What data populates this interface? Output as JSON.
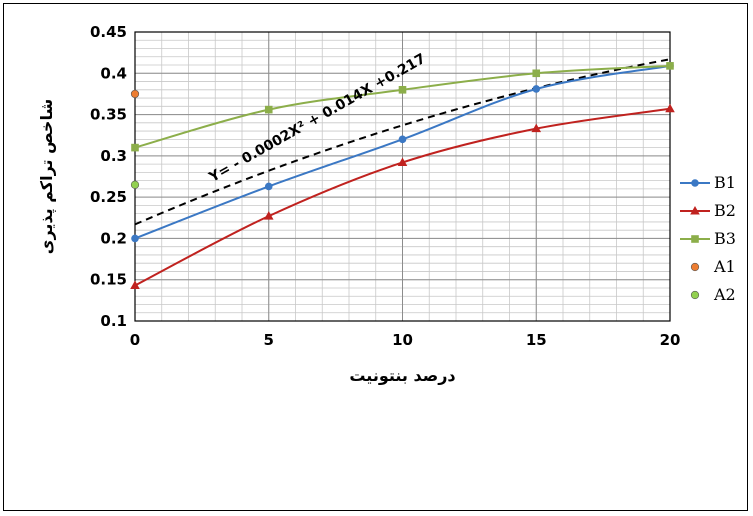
{
  "chart_data": {
    "type": "line",
    "title": "",
    "xlabel": "درصد بنتونیت",
    "ylabel": "شاخص تراکم پذیری",
    "xlim": [
      0,
      20
    ],
    "ylim": [
      0.1,
      0.45
    ],
    "x_ticks": [
      "0",
      "5",
      "10",
      "15",
      "20"
    ],
    "y_ticks": [
      "0.1",
      "0.15",
      "0.2",
      "0.25",
      "0.3",
      "0.35",
      "0.4",
      "0.45"
    ],
    "x_minor_step": 1,
    "y_minor_step": 0.01,
    "grid": true,
    "legend_position": "right",
    "series": [
      {
        "name": "B1",
        "color": "#3b78c4",
        "marker": "circle",
        "x": [
          0,
          5,
          10,
          15,
          20
        ],
        "y": [
          0.2,
          0.263,
          0.32,
          0.381,
          0.409
        ]
      },
      {
        "name": "B2",
        "color": "#c0221f",
        "marker": "triangle",
        "x": [
          0,
          5,
          10,
          15,
          20
        ],
        "y": [
          0.143,
          0.227,
          0.292,
          0.333,
          0.357
        ]
      },
      {
        "name": "B3",
        "color": "#8cae4a",
        "marker": "square",
        "x": [
          0,
          5,
          10,
          15,
          20
        ],
        "y": [
          0.31,
          0.356,
          0.38,
          0.4,
          0.409
        ]
      },
      {
        "name": "A1",
        "color": "#ed7d31",
        "marker": "point",
        "x": [
          0
        ],
        "y": [
          0.375
        ]
      },
      {
        "name": "A2",
        "color": "#92d050",
        "marker": "point",
        "x": [
          0
        ],
        "y": [
          0.265
        ]
      }
    ],
    "trendline": {
      "equation": "Y= - 0.0002X² + 0.014X +0.217",
      "color": "#000000",
      "style": "dashed",
      "coefficients": {
        "a": -0.0002,
        "b": 0.014,
        "c": 0.217
      },
      "x_range": [
        0,
        20
      ]
    }
  }
}
